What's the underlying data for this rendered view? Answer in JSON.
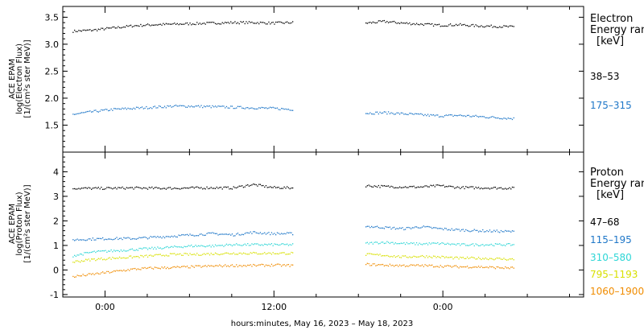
{
  "chart_data": [
    {
      "type": "scatter",
      "ylabel_lines": [
        "ACE EPAM",
        "log(Electron Flux)",
        "[1/(cm²s ster MeV)]"
      ],
      "yticks": [
        1.5,
        2.0,
        2.5,
        3.0,
        3.5
      ],
      "ylim": [
        1.0,
        3.7
      ],
      "legend_title": [
        "Electron",
        "Energy ran",
        "[keV]"
      ],
      "series": [
        {
          "name": "38–53",
          "color": "#000000",
          "segments": [
            {
              "start": -2.3,
              "end": 13.3,
              "y": [
                3.25,
                3.27,
                3.31,
                3.35,
                3.37,
                3.38,
                3.39,
                3.4,
                3.41,
                3.41,
                3.4,
                3.41
              ]
            },
            {
              "start": 18.5,
              "end": 29.0,
              "y": [
                3.4,
                3.43,
                3.4,
                3.38,
                3.36,
                3.37,
                3.35,
                3.34,
                3.33
              ]
            }
          ]
        },
        {
          "name": "175–315",
          "color": "#1f77c8",
          "segments": [
            {
              "start": -2.3,
              "end": 13.3,
              "y": [
                1.71,
                1.76,
                1.8,
                1.82,
                1.84,
                1.86,
                1.86,
                1.85,
                1.84,
                1.83,
                1.82,
                1.8
              ]
            },
            {
              "start": 18.5,
              "end": 29.0,
              "y": [
                1.73,
                1.74,
                1.72,
                1.7,
                1.68,
                1.69,
                1.67,
                1.65,
                1.63
              ]
            }
          ]
        }
      ]
    },
    {
      "type": "scatter",
      "ylabel_lines": [
        "ACE EPAM",
        "log(Proton Flux)",
        "[1/(cm²s ster MeV)]"
      ],
      "yticks": [
        -1,
        0,
        1,
        2,
        3,
        4
      ],
      "ylim": [
        -1.1,
        4.8
      ],
      "legend_title": [
        "Proton",
        "Energy ran",
        "[keV]"
      ],
      "series": [
        {
          "name": "47–68",
          "color": "#000000",
          "segments": [
            {
              "start": -2.3,
              "end": 13.3,
              "y": [
                3.35,
                3.34,
                3.35,
                3.36,
                3.35,
                3.35,
                3.36,
                3.37,
                3.36,
                3.5,
                3.38,
                3.36
              ]
            },
            {
              "start": 18.5,
              "end": 29.0,
              "y": [
                3.45,
                3.42,
                3.4,
                3.4,
                3.45,
                3.38,
                3.37,
                3.36,
                3.35
              ]
            }
          ]
        },
        {
          "name": "115–195",
          "color": "#1f77c8",
          "segments": [
            {
              "start": -2.3,
              "end": 13.3,
              "y": [
                1.25,
                1.28,
                1.3,
                1.3,
                1.35,
                1.4,
                1.45,
                1.5,
                1.45,
                1.55,
                1.5,
                1.5
              ]
            },
            {
              "start": 18.5,
              "end": 29.0,
              "y": [
                1.8,
                1.75,
                1.7,
                1.78,
                1.7,
                1.65,
                1.62,
                1.6,
                1.58
              ]
            }
          ]
        },
        {
          "name": "310–580",
          "color": "#2ed6d6",
          "segments": [
            {
              "start": -2.3,
              "end": 13.3,
              "y": [
                0.6,
                0.75,
                0.8,
                0.85,
                0.9,
                0.95,
                1.0,
                1.0,
                1.05,
                1.05,
                1.05,
                1.05
              ]
            },
            {
              "start": 18.5,
              "end": 29.0,
              "y": [
                1.1,
                1.15,
                1.1,
                1.08,
                1.1,
                1.05,
                1.05,
                1.05,
                1.05
              ]
            }
          ]
        },
        {
          "name": "795–1193",
          "color": "#d8e000",
          "segments": [
            {
              "start": -2.3,
              "end": 13.3,
              "y": [
                0.35,
                0.45,
                0.5,
                0.55,
                0.6,
                0.65,
                0.65,
                0.68,
                0.7,
                0.7,
                0.7,
                0.7
              ]
            },
            {
              "start": 18.5,
              "end": 29.0,
              "y": [
                0.65,
                0.62,
                0.55,
                0.58,
                0.55,
                0.5,
                0.5,
                0.48,
                0.45
              ]
            }
          ]
        },
        {
          "name": "1060–1900",
          "color": "#f08c00",
          "segments": [
            {
              "start": -2.3,
              "end": 13.3,
              "y": [
                -0.25,
                -0.15,
                -0.05,
                0.05,
                0.1,
                0.12,
                0.15,
                0.18,
                0.2,
                0.2,
                0.22,
                0.2
              ]
            },
            {
              "start": 18.5,
              "end": 29.0,
              "y": [
                0.25,
                0.22,
                0.2,
                0.2,
                0.18,
                0.15,
                0.15,
                0.12,
                0.1
              ]
            }
          ]
        }
      ]
    }
  ],
  "x_axis": {
    "xlim": [
      -3,
      34
    ],
    "ticks": [
      0,
      12,
      24
    ],
    "tick_labels": [
      "0:00",
      "12:00",
      "0:00"
    ],
    "xlabel": "hours:minutes, May 16, 2023 – May 18, 2023"
  }
}
